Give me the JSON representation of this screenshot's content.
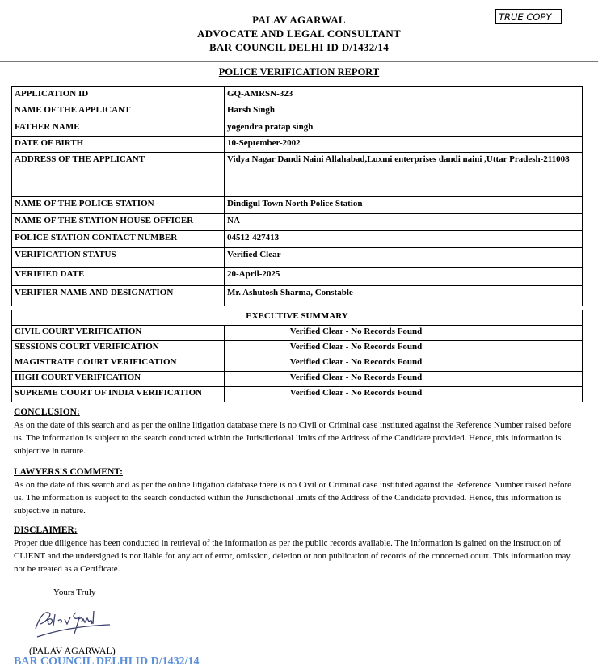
{
  "header": {
    "name": "PALAV AGARWAL",
    "role": "ADVOCATE AND LEGAL CONSULTANT",
    "bar_id": "BAR COUNCIL DELHI ID D/1432/14",
    "stamp": "TRUE COPY"
  },
  "title": "POLICE VERIFICATION REPORT",
  "details": [
    [
      "APPLICATION ID",
      "GQ-AMRSN-323"
    ],
    [
      "NAME OF THE APPLICANT",
      "Harsh Singh"
    ],
    [
      "FATHER NAME",
      "yogendra pratap singh"
    ],
    [
      "DATE OF BIRTH",
      "10-September-2002"
    ],
    [
      "ADDRESS OF THE APPLICANT",
      "Vidya Nagar Dandi Naini Allahabad,Luxmi enterprises dandi naini ,Uttar Pradesh-211008"
    ],
    [
      "NAME OF THE POLICE STATION",
      "Dindigul Town North Police Station"
    ],
    [
      "NAME OF THE STATION HOUSE OFFICER",
      "NA"
    ],
    [
      "POLICE STATION CONTACT NUMBER",
      "04512-427413"
    ],
    [
      "VERIFICATION STATUS",
      "Verified Clear"
    ],
    [
      "VERIFIED DATE",
      "20-April-2025"
    ],
    [
      "VERIFIER NAME AND DESIGNATION",
      "Mr. Ashutosh Sharma, Constable"
    ]
  ],
  "summary": {
    "heading": "EXECUTIVE SUMMARY",
    "rows": [
      [
        "CIVIL COURT VERIFICATION",
        "Verified Clear - No Records Found"
      ],
      [
        "SESSIONS COURT VERIFICATION",
        "Verified Clear - No Records Found"
      ],
      [
        "MAGISTRATE COURT VERIFICATION",
        "Verified Clear - No Records Found"
      ],
      [
        "HIGH COURT VERIFICATION",
        "Verified Clear - No Records Found"
      ],
      [
        "SUPREME COURT OF INDIA VERIFICATION",
        "Verified Clear - No Records Found"
      ]
    ]
  },
  "conclusion": {
    "heading": "CONCLUSION:",
    "text": "As on the date of this search and as per the online litigation database there is no Civil or Criminal case instituted against the Reference Number raised before us. The information is subject to the search conducted within the Jurisdictional limits of the Address of the Candidate provided. Hence, this information is subjective in nature."
  },
  "comment": {
    "heading": "LAWYERS'S COMMENT:",
    "text": "As on the date of this search and as per the online litigation database there is no Civil or Criminal case instituted against the Reference Number raised before us. The information is subject to the search conducted within the Jurisdictional limits of the Address of the Candidate provided. Hence, this information is subjective in nature."
  },
  "disclaimer": {
    "heading": "DISCLAIMER:",
    "text": "Proper due diligence has been conducted in retrieval of the information as per the public records available. The information is gained on the instruction of CLIENT and the undersigned is not liable for any act of error, omission, deletion or non publication of records of the concerned court. This information may not be treated as a Certificate."
  },
  "signoff": {
    "closing": "Yours Truly",
    "signature": "Palav Agarwal",
    "name": "(PALAV AGARWAL)",
    "bar_id": "BAR COUNCIL DELHI ID D/1432/14",
    "bar_color": "#5b8fd9"
  }
}
